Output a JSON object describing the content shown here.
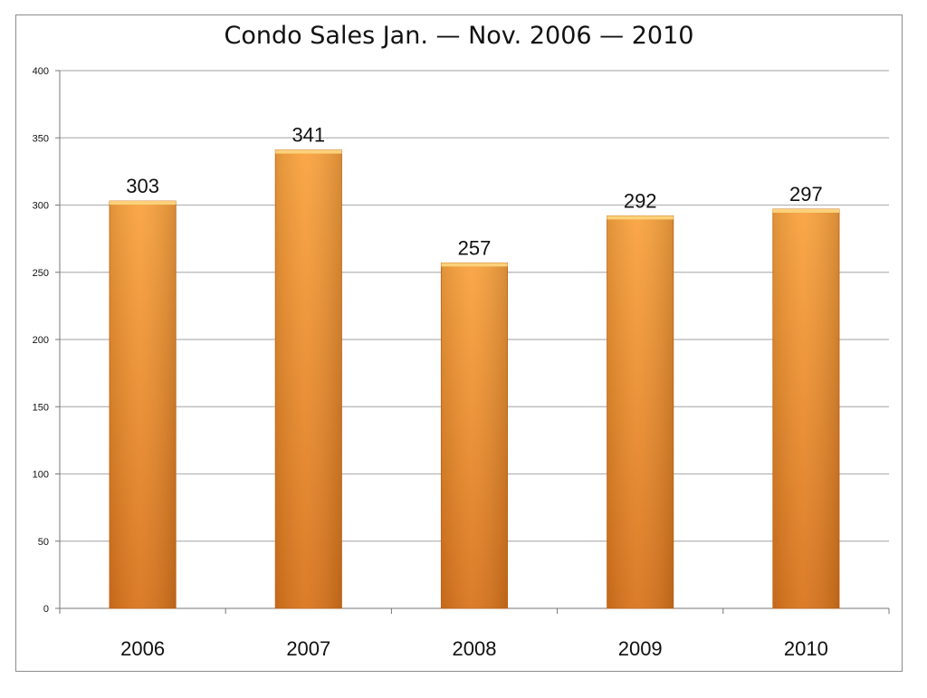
{
  "chart_data": {
    "type": "bar",
    "title": "Condo Sales Jan. — Nov. 2006 — 2010",
    "xlabel": "",
    "ylabel": "",
    "categories": [
      "2006",
      "2007",
      "2008",
      "2009",
      "2010"
    ],
    "values": [
      303,
      341,
      257,
      292,
      297
    ],
    "data_labels": [
      "303",
      "341",
      "257",
      "292",
      "297"
    ],
    "ylim": [
      0,
      400
    ],
    "yticks": [
      0,
      50,
      100,
      150,
      200,
      250,
      300,
      350,
      400
    ],
    "grid": true,
    "legend": "none",
    "colors": {
      "bar_top": "#f9a23e",
      "bar_bottom": "#d9741c",
      "bar_cap": "#fbd27a",
      "grid": "#b5b5b5"
    }
  }
}
